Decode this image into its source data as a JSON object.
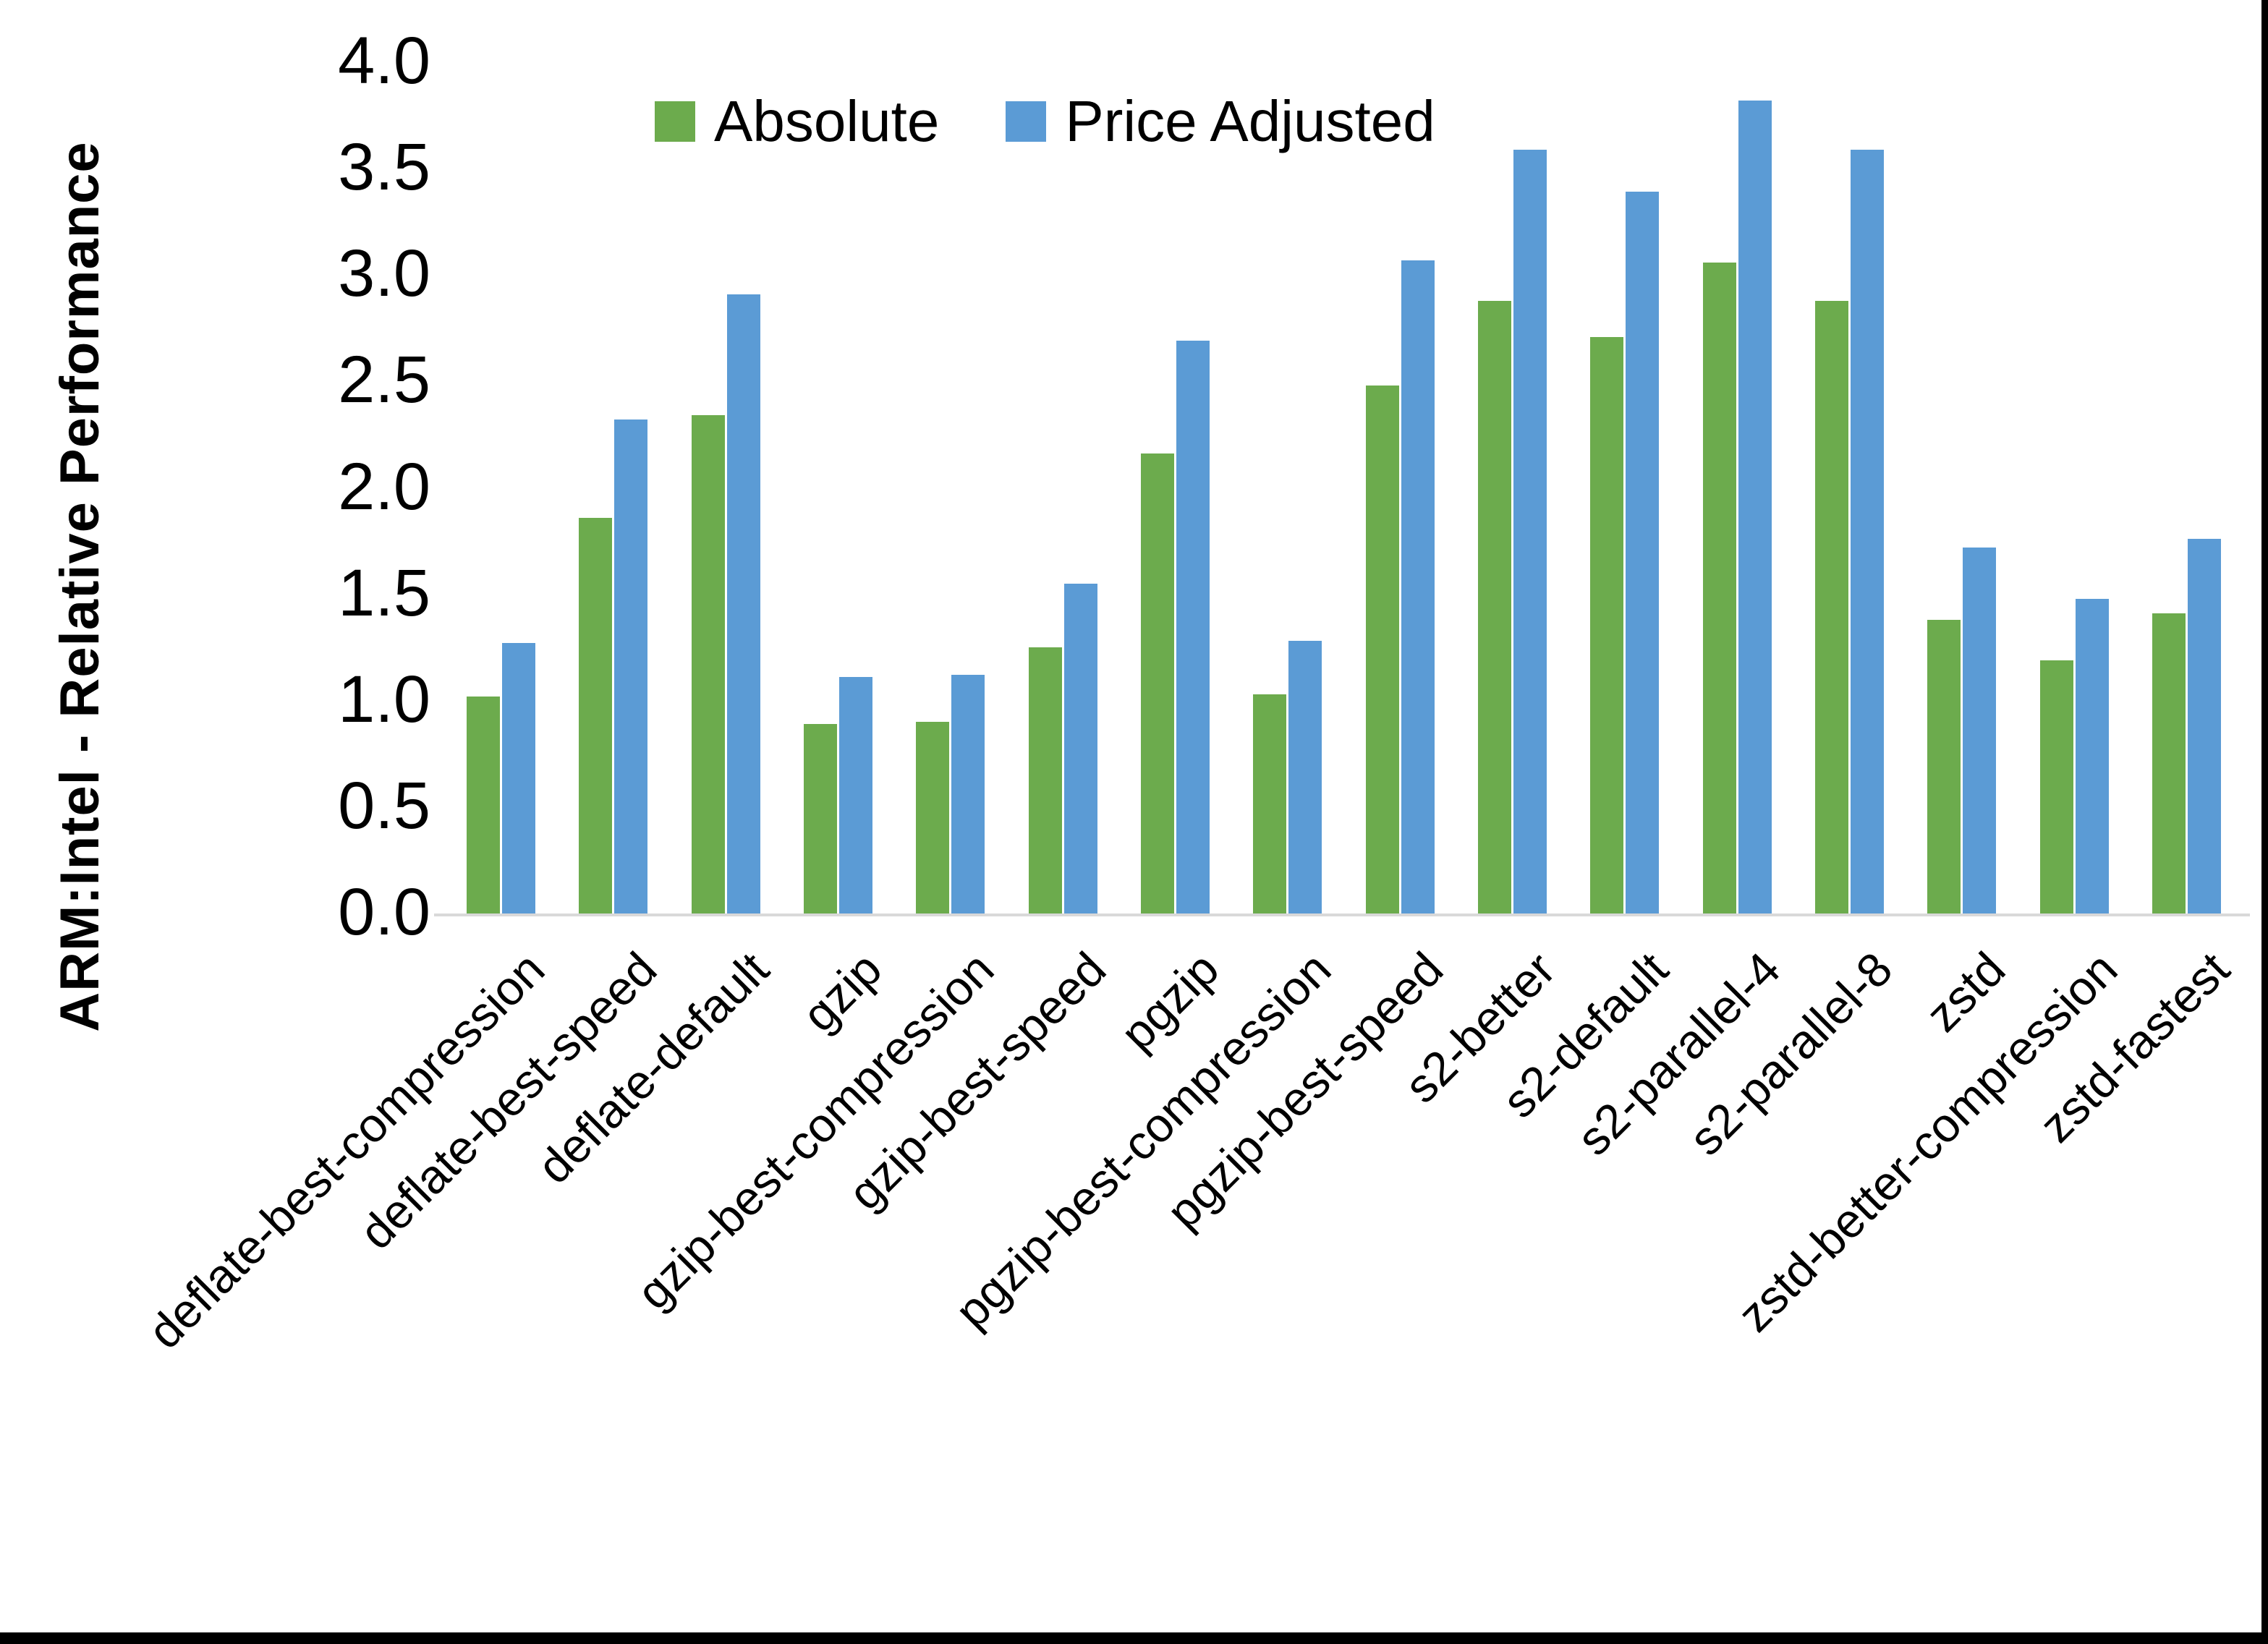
{
  "chart_data": {
    "type": "bar",
    "title": "",
    "xlabel": "",
    "ylabel": "ARM:Intel - Relative Performance",
    "ylim": [
      0,
      4
    ],
    "ytick_labels": [
      "0.0",
      "0.5",
      "1.0",
      "1.5",
      "2.0",
      "2.5",
      "3.0",
      "3.5",
      "4.0"
    ],
    "grid": false,
    "legend_position": "top-center",
    "categories": [
      "deflate-best-compression",
      "deflate-best-speed",
      "deflate-default",
      "gzip",
      "gzip-best-compression",
      "gzip-best-speed",
      "pgzip",
      "pgzip-best-compression",
      "pgzip-best-speed",
      "s2-better",
      "s2-default",
      "s2-parallel-4",
      "s2-parallel-8",
      "zstd",
      "zstd-better-compression",
      "zstd-fastest"
    ],
    "series": [
      {
        "name": "Absolute",
        "color": "#6CAB4D",
        "values": [
          1.02,
          1.86,
          2.34,
          0.89,
          0.9,
          1.25,
          2.16,
          1.03,
          2.48,
          2.88,
          2.71,
          3.06,
          2.88,
          1.38,
          1.19,
          1.41
        ]
      },
      {
        "name": "Price Adjusted",
        "color": "#5B9BD5",
        "values": [
          1.27,
          2.32,
          2.91,
          1.11,
          1.12,
          1.55,
          2.69,
          1.28,
          3.07,
          3.59,
          3.39,
          3.82,
          3.59,
          1.72,
          1.48,
          1.76
        ]
      }
    ]
  },
  "colors": {
    "axis_line": "#D9D9D9",
    "text": "#000000",
    "frame": "#000000",
    "background": "#FFFFFF"
  }
}
